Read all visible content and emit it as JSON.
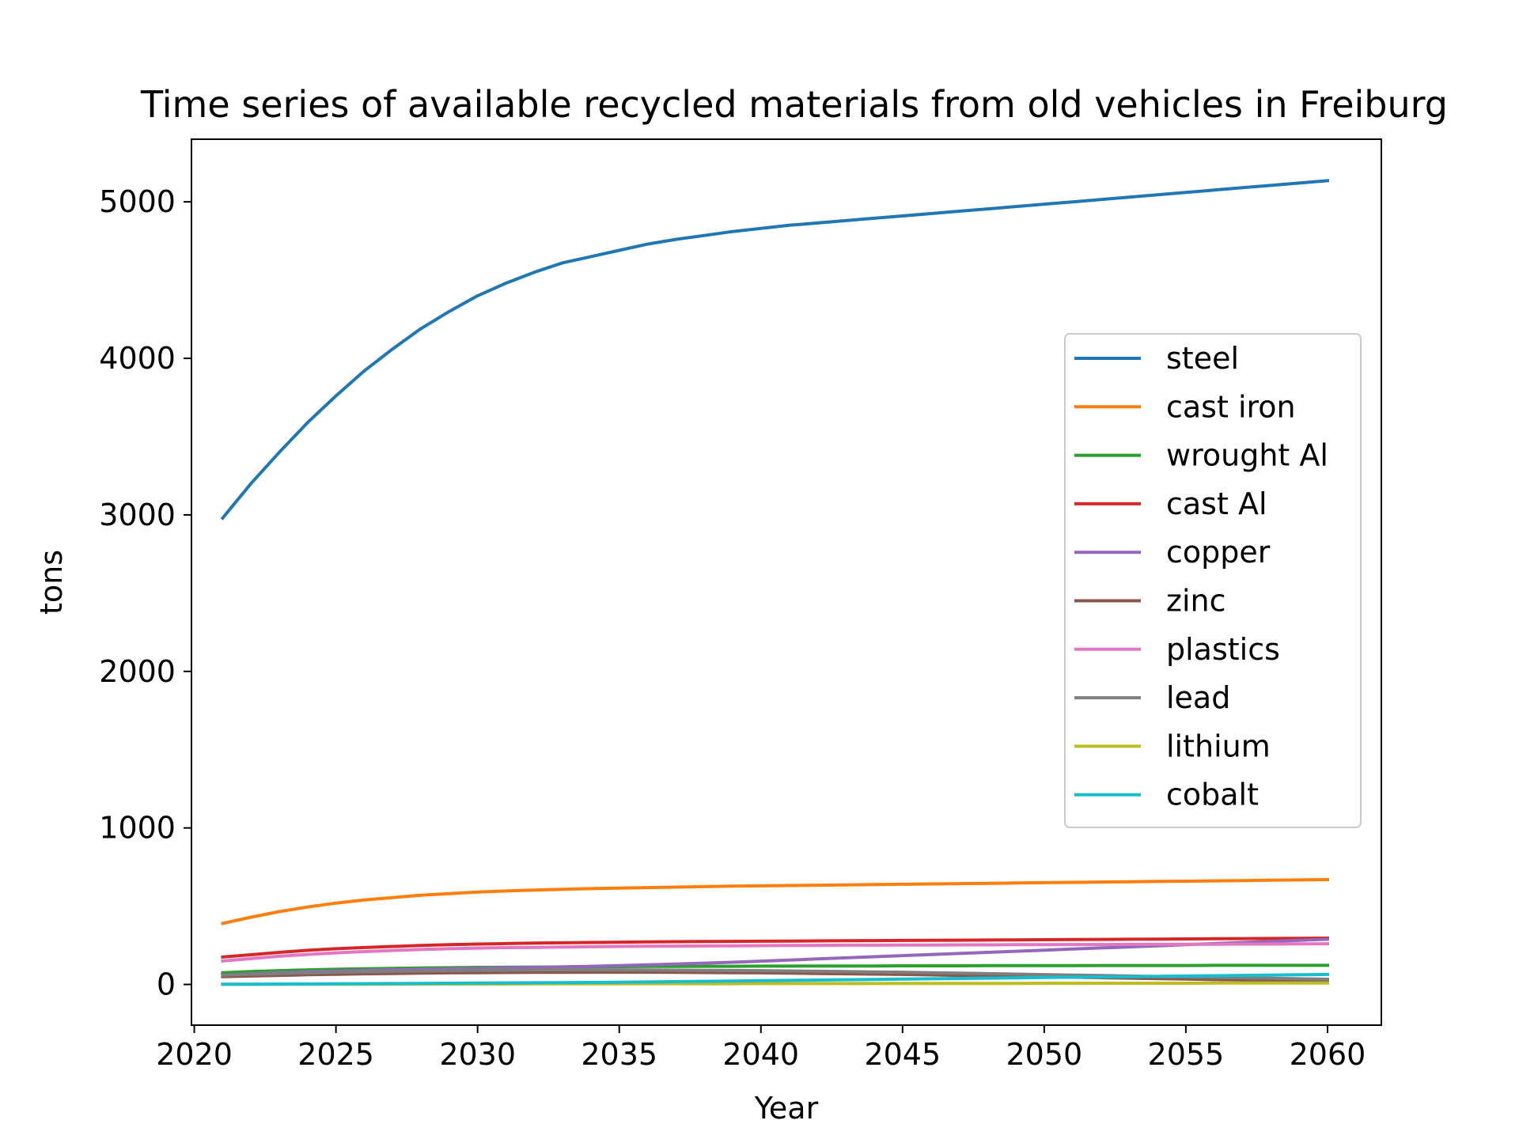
{
  "chart_data": {
    "type": "line",
    "title": "Time series of available recycled materials from old vehicles in Freiburg",
    "xlabel": "Year",
    "ylabel": "tons",
    "xlim": [
      2019.9,
      2061.9
    ],
    "ylim": [
      -260,
      5400
    ],
    "xticks": [
      2020,
      2025,
      2030,
      2035,
      2040,
      2045,
      2050,
      2055,
      2060
    ],
    "xtick_labels": [
      "2020",
      "2025",
      "2030",
      "2035",
      "2040",
      "2045",
      "2050",
      "2055",
      "2060"
    ],
    "yticks": [
      0,
      1000,
      2000,
      3000,
      4000,
      5000
    ],
    "ytick_labels": [
      "0",
      "1000",
      "2000",
      "3000",
      "4000",
      "5000"
    ],
    "grid": false,
    "legend_position": "right",
    "x": [
      2021,
      2022,
      2023,
      2024,
      2025,
      2026,
      2027,
      2028,
      2029,
      2030,
      2031,
      2032,
      2033,
      2034,
      2035,
      2036,
      2037,
      2038,
      2039,
      2040,
      2041,
      2042,
      2043,
      2044,
      2045,
      2046,
      2047,
      2048,
      2049,
      2050,
      2051,
      2052,
      2053,
      2054,
      2055,
      2056,
      2057,
      2058,
      2059,
      2060
    ],
    "series": [
      {
        "name": "steel",
        "color": "#1f77b4",
        "values": [
          2980,
          3200,
          3400,
          3590,
          3760,
          3920,
          4060,
          4190,
          4300,
          4400,
          4480,
          4550,
          4610,
          4650,
          4690,
          4730,
          4760,
          4785,
          4810,
          4830,
          4850,
          4865,
          4880,
          4895,
          4910,
          4925,
          4940,
          4955,
          4970,
          4985,
          5000,
          5015,
          5030,
          5045,
          5060,
          5075,
          5090,
          5105,
          5120,
          5135
        ]
      },
      {
        "name": "cast iron",
        "color": "#ff7f0e",
        "values": [
          390,
          430,
          465,
          495,
          520,
          540,
          555,
          570,
          580,
          590,
          597,
          603,
          608,
          612,
          616,
          619,
          622,
          625,
          628,
          630,
          632,
          634,
          636,
          638,
          640,
          642,
          644,
          646,
          648,
          650,
          652,
          654,
          656,
          658,
          660,
          662,
          664,
          666,
          668,
          670
        ]
      },
      {
        "name": "wrought Al",
        "color": "#2ca02c",
        "values": [
          75,
          82,
          88,
          93,
          97,
          100,
          103,
          105,
          107,
          109,
          110,
          111,
          112,
          113,
          114,
          115,
          115,
          116,
          116,
          117,
          117,
          118,
          118,
          118,
          119,
          119,
          119,
          120,
          120,
          120,
          120,
          121,
          121,
          121,
          121,
          122,
          122,
          122,
          122,
          122
        ]
      },
      {
        "name": "cast Al",
        "color": "#d62728",
        "values": [
          175,
          190,
          205,
          218,
          228,
          236,
          243,
          249,
          254,
          258,
          261,
          264,
          266,
          268,
          270,
          272,
          273,
          274,
          275,
          276,
          277,
          278,
          279,
          280,
          281,
          282,
          283,
          284,
          285,
          286,
          287,
          288,
          289,
          290,
          291,
          292,
          293,
          294,
          295,
          296
        ]
      },
      {
        "name": "copper",
        "color": "#9467bd",
        "values": [
          60,
          68,
          75,
          81,
          86,
          90,
          94,
          97,
          100,
          103,
          106,
          109,
          112,
          116,
          120,
          125,
          130,
          136,
          142,
          149,
          156,
          163,
          170,
          177,
          184,
          191,
          198,
          205,
          212,
          219,
          226,
          233,
          240,
          247,
          254,
          261,
          268,
          275,
          282,
          289
        ]
      },
      {
        "name": "zinc",
        "color": "#8c564b",
        "values": [
          50,
          54,
          58,
          62,
          65,
          68,
          70,
          72,
          74,
          75,
          76,
          77,
          77,
          78,
          78,
          78,
          77,
          76,
          75,
          74,
          72,
          70,
          68,
          66,
          64,
          61,
          58,
          55,
          52,
          49,
          46,
          43,
          40,
          37,
          34,
          31,
          28,
          25,
          22,
          20
        ]
      },
      {
        "name": "plastics",
        "color": "#e377c2",
        "values": [
          150,
          165,
          180,
          192,
          202,
          210,
          217,
          223,
          228,
          232,
          235,
          237,
          239,
          241,
          243,
          244,
          245,
          246,
          247,
          248,
          249,
          250,
          251,
          251,
          252,
          252,
          253,
          253,
          254,
          254,
          255,
          255,
          256,
          256,
          257,
          257,
          258,
          258,
          259,
          260
        ]
      },
      {
        "name": "lead",
        "color": "#7f7f7f",
        "values": [
          60,
          65,
          70,
          74,
          78,
          81,
          84,
          86,
          88,
          90,
          91,
          92,
          93,
          93,
          93,
          92,
          91,
          90,
          89,
          88,
          86,
          84,
          82,
          80,
          78,
          75,
          72,
          69,
          66,
          63,
          60,
          57,
          54,
          51,
          48,
          45,
          42,
          39,
          36,
          33
        ]
      },
      {
        "name": "lithium",
        "color": "#bcbd22",
        "values": [
          1,
          1,
          1,
          2,
          2,
          2,
          2,
          3,
          3,
          3,
          3,
          4,
          4,
          4,
          4,
          5,
          5,
          5,
          5,
          6,
          6,
          6,
          6,
          6,
          7,
          7,
          7,
          7,
          7,
          8,
          8,
          8,
          8,
          8,
          8,
          9,
          9,
          9,
          9,
          9
        ]
      },
      {
        "name": "cobalt",
        "color": "#17becf",
        "values": [
          2,
          2,
          3,
          3,
          4,
          5,
          6,
          7,
          8,
          9,
          10,
          11,
          12,
          13,
          14,
          16,
          18,
          20,
          22,
          24,
          26,
          28,
          30,
          32,
          34,
          36,
          38,
          40,
          42,
          44,
          46,
          48,
          50,
          52,
          54,
          56,
          58,
          60,
          62,
          64
        ]
      }
    ]
  }
}
